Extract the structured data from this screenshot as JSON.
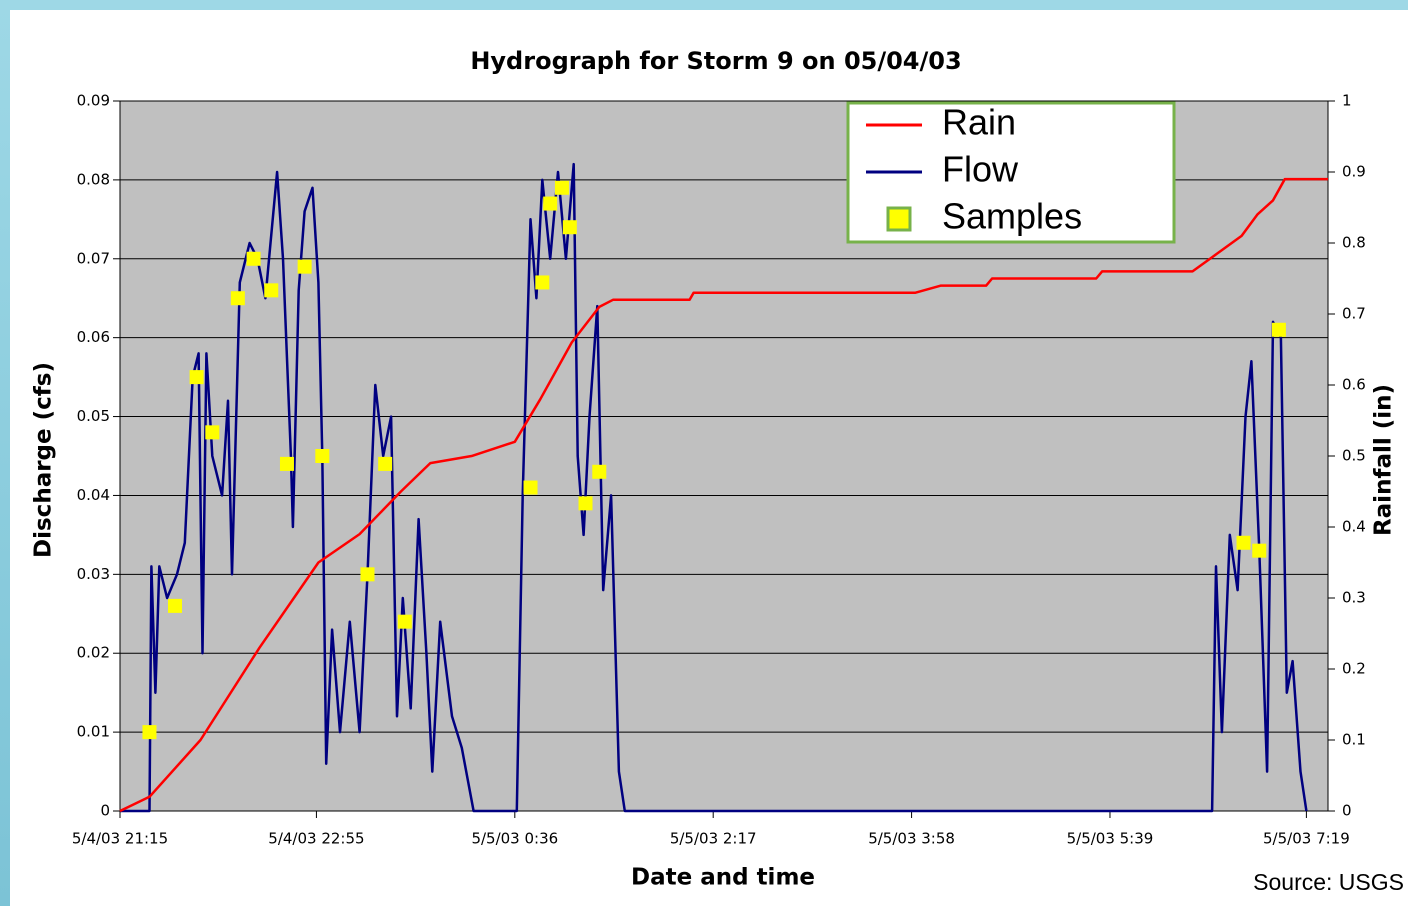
{
  "chart_data": {
    "type": "line",
    "title": "Hydrograph for Storm 9 on 05/04/03",
    "x_label": "Date and time",
    "y_label": "Discharge (cfs)",
    "y2_label": "Rainfall (in)",
    "source": "Source: USGS",
    "xlim": [
      "5/4/03 21:15",
      "5/5/03 7:30"
    ],
    "xticks": [
      "5/4/03 21:15",
      "5/4/03 22:55",
      "5/5/03 0:36",
      "5/5/03 2:17",
      "5/5/03 3:58",
      "5/5/03 5:39",
      "5/5/03 7:19"
    ],
    "ylim": [
      0,
      0.09
    ],
    "yticks": [
      0,
      0.01,
      0.02,
      0.03,
      0.04,
      0.05,
      0.06,
      0.07,
      0.08,
      0.09
    ],
    "y2lim": [
      0,
      1
    ],
    "y2ticks": [
      0,
      0.1,
      0.2,
      0.3,
      0.4,
      0.5,
      0.6,
      0.7,
      0.8,
      0.9,
      1
    ],
    "grid": true,
    "background": "#c0c0c0",
    "legend": "upper right",
    "series": [
      {
        "name": "Rain",
        "color": "#ff0000",
        "axis": "y2",
        "marker": "none",
        "x": [
          "5/4/03 21:15",
          "5/4/03 21:30",
          "5/4/03 21:56",
          "5/4/03 22:26",
          "5/4/03 22:56",
          "5/4/03 23:17",
          "5/4/03 23:38",
          "5/4/03 23:53",
          "5/5/03 0:14",
          "5/5/03 0:36",
          "5/5/03 0:49",
          "5/5/03 1:05",
          "5/5/03 1:19",
          "5/5/03 1:26",
          "5/5/03 2:05",
          "5/5/03 2:07",
          "5/5/03 4:00",
          "5/5/03 4:13",
          "5/5/03 4:36",
          "5/5/03 4:39",
          "5/5/03 5:32",
          "5/5/03 5:35",
          "5/5/03 6:21",
          "5/5/03 6:31",
          "5/5/03 6:46",
          "5/5/03 6:54",
          "5/5/03 7:02",
          "5/5/03 7:08",
          "5/5/03 7:30"
        ],
        "values": [
          0,
          0.02,
          0.1,
          0.23,
          0.35,
          0.39,
          0.45,
          0.49,
          0.5,
          0.52,
          0.58,
          0.66,
          0.71,
          0.72,
          0.72,
          0.73,
          0.73,
          0.74,
          0.74,
          0.75,
          0.75,
          0.76,
          0.76,
          0.78,
          0.81,
          0.84,
          0.86,
          0.89,
          0.89
        ]
      },
      {
        "name": "Flow",
        "color": "#000080",
        "marker": "none",
        "x": [
          "5/4/03 21:15",
          "5/4/03 21:30",
          "5/4/03 21:31",
          "5/4/03 21:33",
          "5/4/03 21:35",
          "5/4/03 21:39",
          "5/4/03 21:44",
          "5/4/03 21:48",
          "5/4/03 21:52",
          "5/4/03 21:55",
          "5/4/03 21:57",
          "5/4/03 21:59",
          "5/4/03 22:02",
          "5/4/03 22:07",
          "5/4/03 22:10",
          "5/4/03 22:12",
          "5/4/03 22:16",
          "5/4/03 22:21",
          "5/4/03 22:25",
          "5/4/03 22:29",
          "5/4/03 22:35",
          "5/4/03 22:38",
          "5/4/03 22:42",
          "5/4/03 22:43",
          "5/4/03 22:46",
          "5/4/03 22:49",
          "5/4/03 22:53",
          "5/4/03 22:56",
          "5/4/03 22:58",
          "5/4/03 23:00",
          "5/4/03 23:03",
          "5/4/03 23:07",
          "5/4/03 23:12",
          "5/4/03 23:17",
          "5/4/03 23:21",
          "5/4/03 23:25",
          "5/4/03 23:29",
          "5/4/03 23:33",
          "5/4/03 23:36",
          "5/4/03 23:39",
          "5/4/03 23:43",
          "5/4/03 23:47",
          "5/4/03 23:51",
          "5/4/03 23:54",
          "5/4/03 23:58",
          "5/5/03 0:04",
          "5/5/03 0:09",
          "5/5/03 0:15",
          "5/5/03 0:37",
          "5/5/03 0:40",
          "5/5/03 0:44",
          "5/5/03 0:47",
          "5/5/03 0:50",
          "5/5/03 0:54",
          "5/5/03 0:58",
          "5/5/03 1:02",
          "5/5/03 1:06",
          "5/5/03 1:08",
          "5/5/03 1:11",
          "5/5/03 1:14",
          "5/5/03 1:18",
          "5/5/03 1:21",
          "5/5/03 1:25",
          "5/5/03 1:29",
          "5/5/03 1:32",
          "5/5/03 6:31",
          "5/5/03 6:33",
          "5/5/03 6:36",
          "5/5/03 6:40",
          "5/5/03 6:44",
          "5/5/03 6:48",
          "5/5/03 6:51",
          "5/5/03 6:55",
          "5/5/03 6:59",
          "5/5/03 7:02",
          "5/5/03 7:06",
          "5/5/03 7:09",
          "5/5/03 7:12",
          "5/5/03 7:16",
          "5/5/03 7:19"
        ],
        "values": [
          0,
          0,
          0.031,
          0.015,
          0.031,
          0.027,
          0.03,
          0.034,
          0.055,
          0.058,
          0.02,
          0.058,
          0.045,
          0.04,
          0.052,
          0.03,
          0.067,
          0.072,
          0.07,
          0.065,
          0.081,
          0.07,
          0.045,
          0.036,
          0.066,
          0.076,
          0.079,
          0.067,
          0.045,
          0.006,
          0.023,
          0.01,
          0.024,
          0.01,
          0.03,
          0.054,
          0.045,
          0.05,
          0.012,
          0.027,
          0.013,
          0.037,
          0.02,
          0.005,
          0.024,
          0.012,
          0.008,
          0,
          0,
          0.04,
          0.075,
          0.065,
          0.08,
          0.07,
          0.081,
          0.07,
          0.082,
          0.045,
          0.035,
          0.05,
          0.064,
          0.028,
          0.04,
          0.005,
          0,
          0,
          0.031,
          0.01,
          0.035,
          0.028,
          0.05,
          0.057,
          0.033,
          0.005,
          0.062,
          0.06,
          0.015,
          0.019,
          0.005,
          0
        ]
      },
      {
        "name": "Samples",
        "color": "#ffff00",
        "marker": "square",
        "x": [
          "5/4/03 21:30",
          "5/4/03 21:43",
          "5/4/03 21:54",
          "5/4/03 22:02",
          "5/4/03 22:15",
          "5/4/03 22:23",
          "5/4/03 22:32",
          "5/4/03 22:40",
          "5/4/03 22:49",
          "5/4/03 22:58",
          "5/4/03 23:21",
          "5/4/03 23:30",
          "5/4/03 23:40",
          "5/5/03 0:44",
          "5/5/03 0:50",
          "5/5/03 0:54",
          "5/5/03 1:00",
          "5/5/03 1:04",
          "5/5/03 1:12",
          "5/5/03 1:19",
          "5/5/03 6:47",
          "5/5/03 6:55",
          "5/5/03 7:05"
        ],
        "values": [
          0.01,
          0.026,
          0.055,
          0.048,
          0.065,
          0.07,
          0.066,
          0.044,
          0.069,
          0.045,
          0.03,
          0.044,
          0.024,
          0.041,
          0.067,
          0.077,
          0.079,
          0.074,
          0.039,
          0.043,
          0.034,
          0.033,
          0.061
        ]
      }
    ]
  }
}
